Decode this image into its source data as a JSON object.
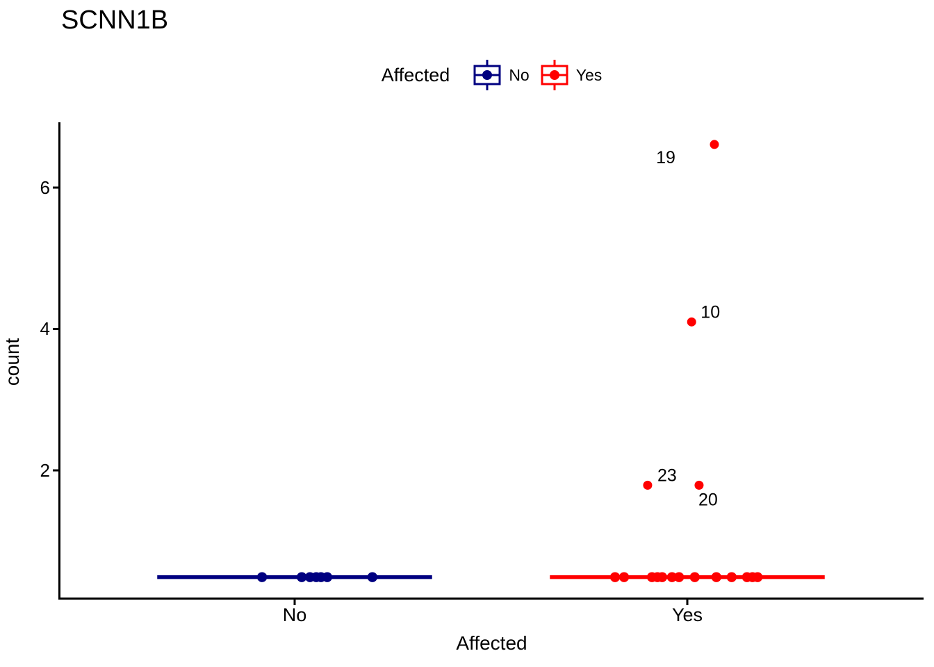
{
  "title": "SCNN1B",
  "legend": {
    "title": "Affected",
    "items": [
      {
        "label": "No",
        "color": "#000080",
        "icon": "boxplot-key-icon"
      },
      {
        "label": "Yes",
        "color": "#FF0000",
        "icon": "boxplot-key-icon"
      }
    ]
  },
  "axes": {
    "x": {
      "title": "Affected",
      "ticks": [
        "No",
        "Yes"
      ]
    },
    "y": {
      "title": "count",
      "ticks": [
        "2",
        "4",
        "6"
      ],
      "tick_values": [
        2,
        4,
        6
      ]
    }
  },
  "chart_data": {
    "type": "boxplot-jitter",
    "title": "SCNN1B",
    "xlabel": "Affected",
    "ylabel": "count",
    "categories": [
      "No",
      "Yes"
    ],
    "y_ticks": [
      2,
      4,
      6
    ],
    "ylim": [
      0.18,
      6.93
    ],
    "grid": false,
    "legend_position": "top",
    "box_width_fraction": 0.7,
    "series": [
      {
        "name": "No",
        "color": "#000080",
        "box": {
          "min": 0.49,
          "q1": 0.49,
          "median": 0.49,
          "q3": 0.49,
          "max": 0.49
        },
        "points": [
          {
            "value": 0.49,
            "jitter": -0.083
          },
          {
            "value": 0.49,
            "jitter": 0.018
          },
          {
            "value": 0.49,
            "jitter": 0.039
          },
          {
            "value": 0.49,
            "jitter": 0.055
          },
          {
            "value": 0.49,
            "jitter": 0.067
          },
          {
            "value": 0.49,
            "jitter": 0.083
          },
          {
            "value": 0.49,
            "jitter": 0.198
          }
        ],
        "outliers": []
      },
      {
        "name": "Yes",
        "color": "#FF0000",
        "box": {
          "min": 0.49,
          "q1": 0.49,
          "median": 0.49,
          "q3": 0.49,
          "max": 0.49
        },
        "points": [
          {
            "value": 0.49,
            "jitter": -0.184
          },
          {
            "value": 0.49,
            "jitter": -0.161
          },
          {
            "value": 0.49,
            "jitter": -0.09
          },
          {
            "value": 0.49,
            "jitter": -0.076
          },
          {
            "value": 0.49,
            "jitter": -0.064
          },
          {
            "value": 0.49,
            "jitter": -0.039
          },
          {
            "value": 0.49,
            "jitter": -0.021
          },
          {
            "value": 0.49,
            "jitter": 0.019
          },
          {
            "value": 0.49,
            "jitter": 0.074
          },
          {
            "value": 0.49,
            "jitter": 0.113
          },
          {
            "value": 0.49,
            "jitter": 0.152
          },
          {
            "value": 0.49,
            "jitter": 0.166
          },
          {
            "value": 0.49,
            "jitter": 0.179
          }
        ],
        "outliers": [
          {
            "label": "19",
            "value": 6.61,
            "jitter": 0.069,
            "label_dx": -70,
            "label_dy": 18
          },
          {
            "label": "10",
            "value": 4.1,
            "jitter": 0.011,
            "label_dx": 27,
            "label_dy": -15
          },
          {
            "label": "23",
            "value": 1.79,
            "jitter": -0.101,
            "label_dx": 28,
            "label_dy": -15
          },
          {
            "label": "20",
            "value": 1.79,
            "jitter": 0.03,
            "label_dx": 13,
            "label_dy": 20
          }
        ]
      }
    ]
  }
}
